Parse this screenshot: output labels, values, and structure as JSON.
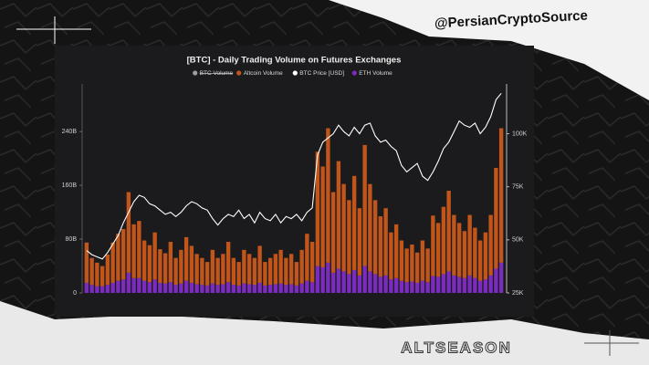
{
  "handle": "@PersianCryptoSource",
  "footer_text": "ALTSEASON",
  "chart_data": {
    "type": "bar",
    "stacked": true,
    "title": "[BTC] - Daily Trading Volume on Futures Exchanges",
    "hidden_series": [
      {
        "name": "BTC Volume",
        "color": "#9e9e9e"
      }
    ],
    "categories": [
      null,
      null,
      null,
      null,
      null,
      null,
      null,
      null,
      null,
      null,
      null,
      null,
      null,
      null,
      null,
      null,
      null,
      null,
      null,
      null,
      null,
      null,
      null,
      null,
      null,
      null,
      null,
      null,
      null,
      null,
      null,
      null,
      null,
      null,
      null,
      null,
      null,
      null,
      null,
      null,
      null,
      null,
      null,
      null,
      null,
      null,
      null,
      null,
      null,
      null,
      null,
      null,
      null,
      null,
      null,
      null,
      null,
      null,
      null,
      null,
      null,
      null,
      null,
      null,
      null,
      null,
      null,
      null,
      null,
      null,
      null,
      null,
      null,
      null,
      null,
      null,
      null,
      null,
      null,
      null
    ],
    "series": [
      {
        "name": "ETH Volume",
        "color": "#7b2cbf",
        "type": "bar",
        "values": [
          15,
          12,
          10,
          10,
          12,
          15,
          18,
          20,
          30,
          22,
          22,
          18,
          16,
          20,
          15,
          14,
          16,
          12,
          14,
          18,
          15,
          13,
          12,
          11,
          14,
          12,
          13,
          16,
          12,
          11,
          14,
          13,
          12,
          15,
          11,
          12,
          13,
          14,
          12,
          13,
          11,
          14,
          18,
          16,
          40,
          38,
          45,
          30,
          36,
          32,
          28,
          34,
          26,
          40,
          32,
          28,
          24,
          26,
          20,
          22,
          18,
          16,
          17,
          15,
          18,
          16,
          25,
          24,
          28,
          32,
          26,
          24,
          22,
          26,
          22,
          18,
          20,
          26,
          36,
          45
        ]
      },
      {
        "name": "Altcoin Volume",
        "color": "#c2561a",
        "type": "bar",
        "values": [
          60,
          40,
          35,
          30,
          45,
          60,
          70,
          75,
          120,
          80,
          85,
          60,
          55,
          70,
          50,
          45,
          60,
          40,
          50,
          65,
          55,
          45,
          40,
          35,
          50,
          40,
          45,
          60,
          40,
          35,
          50,
          45,
          40,
          55,
          35,
          40,
          45,
          50,
          40,
          45,
          35,
          50,
          70,
          60,
          170,
          150,
          200,
          120,
          160,
          130,
          110,
          140,
          100,
          180,
          130,
          110,
          90,
          100,
          70,
          80,
          60,
          50,
          55,
          45,
          60,
          50,
          90,
          80,
          100,
          120,
          90,
          80,
          70,
          90,
          75,
          60,
          70,
          90,
          150,
          200
        ]
      },
      {
        "name": "BTC Price [USD]",
        "color": "#ffffff",
        "type": "line",
        "axis": "y2",
        "values": [
          45000,
          43000,
          42000,
          41000,
          44000,
          48000,
          52000,
          58000,
          63000,
          68000,
          71000,
          70000,
          67000,
          66000,
          64000,
          62000,
          63000,
          61000,
          63000,
          66000,
          68000,
          67000,
          65000,
          64000,
          60000,
          57000,
          60000,
          62000,
          61000,
          64000,
          60000,
          62000,
          58000,
          63000,
          60000,
          59000,
          62000,
          58000,
          61000,
          60000,
          62000,
          59000,
          63000,
          65000,
          90000,
          96000,
          98000,
          100000,
          104000,
          101000,
          99000,
          103000,
          100000,
          104000,
          105000,
          99000,
          96000,
          97000,
          94000,
          92000,
          85000,
          82000,
          84000,
          86000,
          80000,
          78000,
          82000,
          87000,
          93000,
          96000,
          101000,
          106000,
          104000,
          103000,
          105000,
          100000,
          103000,
          108000,
          116000,
          119000
        ]
      }
    ],
    "ylim": [
      0,
      300000000000
    ],
    "yticks": [
      {
        "value": 0,
        "label": "0"
      },
      {
        "value": 80000000000,
        "label": "80B"
      },
      {
        "value": 160000000000,
        "label": "160B"
      },
      {
        "value": 240000000000,
        "label": "240B"
      }
    ],
    "y2lim": [
      25000,
      120000
    ],
    "y2ticks": [
      {
        "value": 25000,
        "label": "25K"
      },
      {
        "value": 50000,
        "label": "50K"
      },
      {
        "value": 75000,
        "label": "75K"
      },
      {
        "value": 100000,
        "label": "100K"
      }
    ],
    "value_unit_scale": 1000000000,
    "legend_position": "top"
  }
}
